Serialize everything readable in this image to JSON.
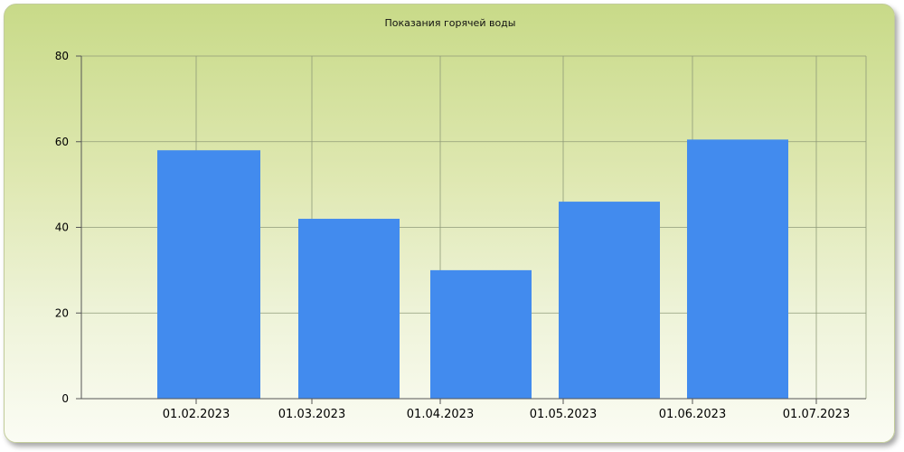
{
  "chart_data": {
    "type": "bar",
    "title": "Показания горячей воды",
    "xlabel": "",
    "ylabel": "",
    "categories": [
      "01.02.2023",
      "01.03.2023",
      "01.04.2023",
      "01.05.2023",
      "01.06.2023"
    ],
    "x_tick_labels": [
      "01.02.2023",
      "01.03.2023",
      "01.04.2023",
      "01.05.2023",
      "01.06.2023",
      "01.07.2023"
    ],
    "series": [
      {
        "values": [
          58,
          42,
          30,
          46,
          60.5
        ],
        "color": "#428bee"
      }
    ],
    "ylim": [
      0,
      80
    ],
    "y_ticks": [
      0,
      20,
      40,
      60,
      80
    ],
    "grid": true,
    "legend": "none"
  }
}
